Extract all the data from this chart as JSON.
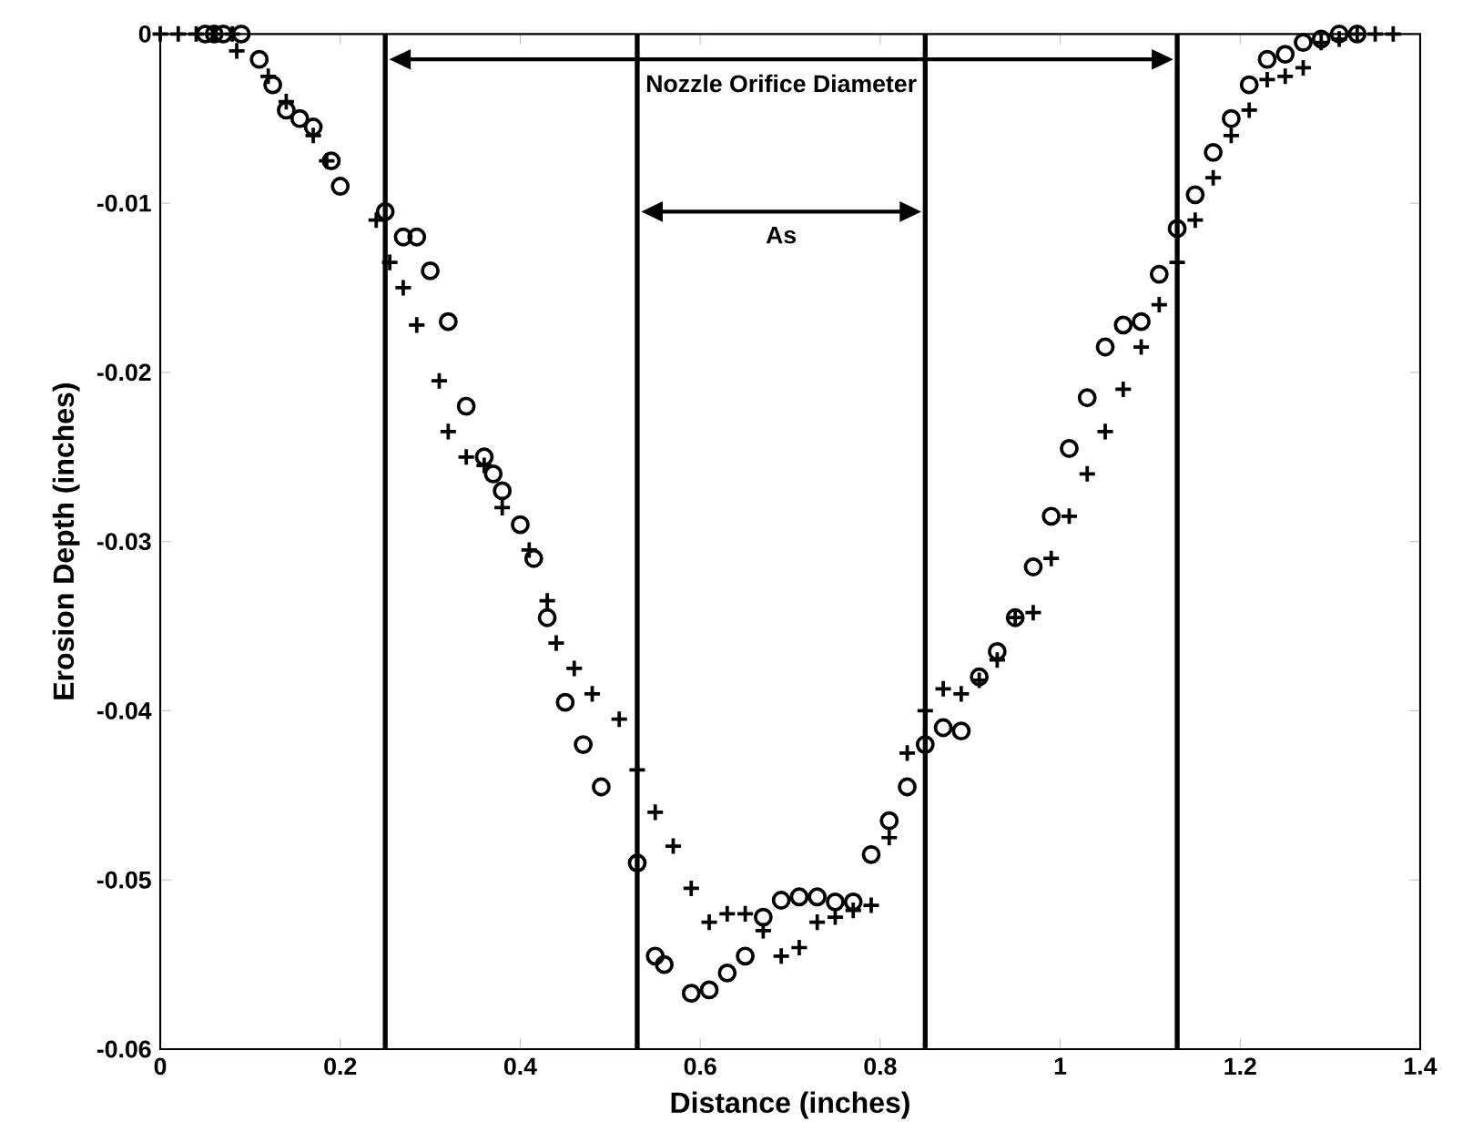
{
  "chart_data": {
    "type": "scatter",
    "xlabel": "Distance (inches)",
    "ylabel": "Erosion Depth (inches)",
    "xlim": [
      0,
      1.4
    ],
    "ylim": [
      -0.06,
      0
    ],
    "xticks": [
      0,
      0.2,
      0.4,
      0.6,
      0.8,
      1,
      1.2,
      1.4
    ],
    "yticks": [
      -0.06,
      -0.05,
      -0.04,
      -0.03,
      -0.02,
      -0.01,
      0
    ],
    "grid": false,
    "series": [
      {
        "marker": "circle",
        "color": "#000000",
        "x": [
          0.05,
          0.06,
          0.07,
          0.09,
          0.11,
          0.125,
          0.14,
          0.155,
          0.17,
          0.19,
          0.2,
          0.25,
          0.27,
          0.285,
          0.3,
          0.32,
          0.34,
          0.36,
          0.37,
          0.38,
          0.4,
          0.415,
          0.43,
          0.45,
          0.47,
          0.49,
          0.53,
          0.55,
          0.56,
          0.59,
          0.61,
          0.63,
          0.65,
          0.67,
          0.69,
          0.71,
          0.73,
          0.75,
          0.77,
          0.79,
          0.81,
          0.83,
          0.85,
          0.87,
          0.89,
          0.91,
          0.93,
          0.95,
          0.97,
          0.99,
          1.01,
          1.03,
          1.05,
          1.07,
          1.09,
          1.11,
          1.13,
          1.15,
          1.17,
          1.19,
          1.21,
          1.23,
          1.25,
          1.27,
          1.29,
          1.31,
          1.33
        ],
        "values": [
          0,
          0,
          0,
          0,
          -0.0015,
          -0.003,
          -0.0045,
          -0.005,
          -0.0055,
          -0.0075,
          -0.009,
          -0.0105,
          -0.012,
          -0.012,
          -0.014,
          -0.017,
          -0.022,
          -0.025,
          -0.026,
          -0.027,
          -0.029,
          -0.031,
          -0.0345,
          -0.0395,
          -0.042,
          -0.0445,
          -0.049,
          -0.0545,
          -0.055,
          -0.0567,
          -0.0565,
          -0.0555,
          -0.0545,
          -0.0522,
          -0.0512,
          -0.051,
          -0.051,
          -0.0513,
          -0.0513,
          -0.0485,
          -0.0465,
          -0.0445,
          -0.042,
          -0.041,
          -0.0412,
          -0.038,
          -0.0365,
          -0.0345,
          -0.0315,
          -0.0285,
          -0.0245,
          -0.0215,
          -0.0185,
          -0.0172,
          -0.017,
          -0.0142,
          -0.0115,
          -0.0095,
          -0.007,
          -0.005,
          -0.003,
          -0.0015,
          -0.0012,
          -0.0005,
          -0.0003,
          0,
          0
        ]
      },
      {
        "marker": "cross",
        "color": "#000000",
        "x": [
          0,
          0.02,
          0.04,
          0.06,
          0.08,
          0.085,
          0.12,
          0.14,
          0.17,
          0.185,
          0.24,
          0.255,
          0.27,
          0.285,
          0.31,
          0.32,
          0.34,
          0.36,
          0.38,
          0.41,
          0.43,
          0.44,
          0.46,
          0.48,
          0.51,
          0.53,
          0.55,
          0.57,
          0.59,
          0.61,
          0.63,
          0.65,
          0.67,
          0.69,
          0.71,
          0.73,
          0.75,
          0.77,
          0.79,
          0.81,
          0.83,
          0.85,
          0.87,
          0.89,
          0.91,
          0.93,
          0.95,
          0.97,
          0.99,
          1.01,
          1.03,
          1.05,
          1.07,
          1.09,
          1.11,
          1.13,
          1.15,
          1.17,
          1.19,
          1.21,
          1.23,
          1.25,
          1.27,
          1.29,
          1.31,
          1.33,
          1.35,
          1.37
        ],
        "values": [
          0,
          0,
          0,
          0,
          0,
          -0.001,
          -0.0025,
          -0.004,
          -0.006,
          -0.0075,
          -0.011,
          -0.0135,
          -0.015,
          -0.0172,
          -0.0205,
          -0.0235,
          -0.025,
          -0.0255,
          -0.028,
          -0.0305,
          -0.0335,
          -0.036,
          -0.0375,
          -0.039,
          -0.0405,
          -0.0435,
          -0.046,
          -0.048,
          -0.0505,
          -0.0525,
          -0.052,
          -0.052,
          -0.053,
          -0.0545,
          -0.054,
          -0.0525,
          -0.0522,
          -0.0518,
          -0.0515,
          -0.0475,
          -0.0425,
          -0.04,
          -0.0387,
          -0.039,
          -0.0382,
          -0.037,
          -0.0345,
          -0.0342,
          -0.031,
          -0.0285,
          -0.026,
          -0.0235,
          -0.021,
          -0.0185,
          -0.016,
          -0.0135,
          -0.011,
          -0.0085,
          -0.006,
          -0.0045,
          -0.0027,
          -0.0025,
          -0.002,
          -0.0005,
          -0.0003,
          0,
          0,
          0
        ]
      }
    ],
    "ref_lines": [
      {
        "axis": "x",
        "value": 0.25
      },
      {
        "axis": "x",
        "value": 0.53
      },
      {
        "axis": "x",
        "value": 0.85
      },
      {
        "axis": "x",
        "value": 1.13
      }
    ],
    "annotations": [
      "Nozzle Orifice Diameter",
      "As"
    ]
  }
}
